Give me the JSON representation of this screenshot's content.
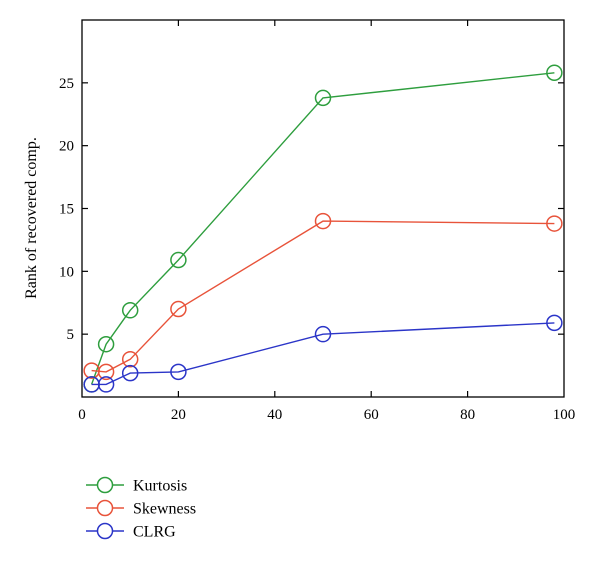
{
  "chart_data": {
    "type": "line",
    "title": "",
    "xlabel": "",
    "ylabel": "Rank of recovered comp.",
    "xlim": [
      0,
      100
    ],
    "ylim": [
      0,
      30
    ],
    "x_ticks": [
      0,
      20,
      40,
      60,
      80,
      100
    ],
    "y_ticks": [
      5,
      10,
      15,
      20,
      25
    ],
    "grid": false,
    "legend_position": "bottom-left",
    "series": [
      {
        "name": "Kurtosis",
        "color": "#2e9e3e",
        "x": [
          2,
          5,
          10,
          20,
          50,
          98
        ],
        "y": [
          1.0,
          4.2,
          6.9,
          10.9,
          23.8,
          25.8
        ]
      },
      {
        "name": "Skewness",
        "color": "#e8533a",
        "x": [
          2,
          5,
          10,
          20,
          50,
          98
        ],
        "y": [
          2.1,
          2.0,
          3.0,
          7.0,
          14.0,
          13.8
        ]
      },
      {
        "name": "CLRG",
        "color": "#2b35c8",
        "x": [
          2,
          5,
          10,
          20,
          50,
          98
        ],
        "y": [
          1.0,
          1.0,
          1.9,
          2.0,
          5.0,
          5.9
        ]
      }
    ]
  }
}
